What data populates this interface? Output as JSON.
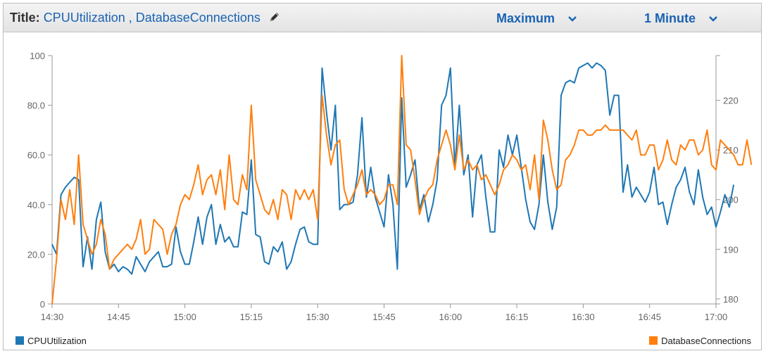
{
  "header": {
    "title_label": "Title:",
    "title_text": "CPUUtilization , DatabaseConnections",
    "edit_icon": "pencil-icon",
    "statistic": "Maximum",
    "period": "1 Minute",
    "accent": "#1a63b4"
  },
  "chart_data": {
    "type": "line",
    "x_ticks": [
      "14:30",
      "14:45",
      "15:00",
      "15:15",
      "15:30",
      "15:45",
      "16:00",
      "16:15",
      "16:30",
      "16:45",
      "17:00"
    ],
    "xlim": [
      "14:30",
      "17:00"
    ],
    "y_left": {
      "ticks": [
        "0",
        "20.0",
        "40.0",
        "60.0",
        "80.0",
        "100"
      ],
      "range": [
        0,
        100
      ]
    },
    "y_right": {
      "ticks": [
        "180",
        "190",
        "200",
        "210",
        "220"
      ],
      "range": [
        179,
        229
      ]
    },
    "series": [
      {
        "name": "CPUUtilization",
        "axis": "left",
        "color": "#1f77b4",
        "x_start": "14:30",
        "x_step_minutes": 1,
        "values": [
          24,
          20,
          44,
          47,
          49,
          51,
          50,
          15,
          27,
          14,
          34,
          41,
          21,
          14,
          16,
          13,
          15,
          14,
          12,
          19,
          16,
          13,
          17,
          19,
          21,
          15,
          15,
          16,
          31,
          21,
          16,
          16,
          25,
          35,
          24,
          35,
          40,
          24,
          32,
          25,
          27,
          23,
          23,
          37,
          36,
          58,
          28,
          27,
          17,
          16,
          23,
          21,
          25,
          14,
          17,
          24,
          30,
          31,
          25,
          24,
          24,
          95,
          77,
          62,
          80,
          38,
          40,
          40,
          41,
          52,
          75,
          43,
          55,
          43,
          37,
          31,
          52,
          40,
          14,
          83,
          47,
          52,
          58,
          38,
          44,
          33,
          40,
          50,
          80,
          84,
          95,
          55,
          80,
          52,
          60,
          35,
          56,
          60,
          43,
          29,
          29,
          62,
          55,
          68,
          60,
          68,
          55,
          42,
          33,
          30,
          40,
          60,
          41,
          30,
          39,
          84,
          89,
          90,
          89,
          95,
          96,
          97,
          95,
          97,
          96,
          94,
          76,
          84,
          84,
          45,
          56,
          43,
          47,
          44,
          41,
          45,
          55,
          40,
          41,
          32,
          40,
          47,
          50,
          55,
          45,
          40,
          54,
          43,
          36,
          39,
          31,
          37,
          44,
          39,
          48
        ]
      },
      {
        "name": "DatabaseConnections",
        "axis": "right",
        "color": "#ff7f0e",
        "x_start": "14:30",
        "x_step_minutes": 1,
        "values": [
          179,
          188,
          200,
          196,
          202,
          195,
          209,
          195,
          192,
          189,
          191,
          196,
          193,
          186,
          188,
          189,
          190,
          191,
          190,
          192,
          196,
          189,
          190,
          196,
          195,
          194,
          189,
          193,
          195,
          199,
          201,
          200,
          203,
          207,
          201,
          204,
          205,
          201,
          206,
          198,
          209,
          200,
          199,
          205,
          202,
          219,
          204,
          201,
          198,
          197,
          200,
          196,
          202,
          201,
          196,
          202,
          200,
          202,
          200,
          202,
          196,
          221,
          213,
          207,
          211,
          212,
          202,
          199,
          201,
          203,
          206,
          201,
          202,
          201,
          199,
          200,
          203,
          203,
          199,
          229,
          211,
          210,
          204,
          197,
          200,
          202,
          203,
          208,
          211,
          214,
          211,
          206,
          213,
          206,
          208,
          206,
          207,
          204,
          205,
          203,
          201,
          203,
          206,
          207,
          209,
          208,
          206,
          207,
          202,
          209,
          200,
          216,
          212,
          206,
          202,
          203,
          208,
          209,
          211,
          214,
          214,
          213,
          213,
          214,
          214,
          215,
          214,
          214,
          214,
          214,
          213,
          212,
          214,
          209,
          209,
          211,
          211,
          206,
          208,
          212,
          208,
          207,
          211,
          210,
          212,
          212,
          209,
          210,
          214,
          207,
          206,
          212,
          211,
          210,
          209,
          207,
          207,
          212,
          207
        ]
      }
    ],
    "grid": false,
    "legend_placement": "bottom"
  }
}
